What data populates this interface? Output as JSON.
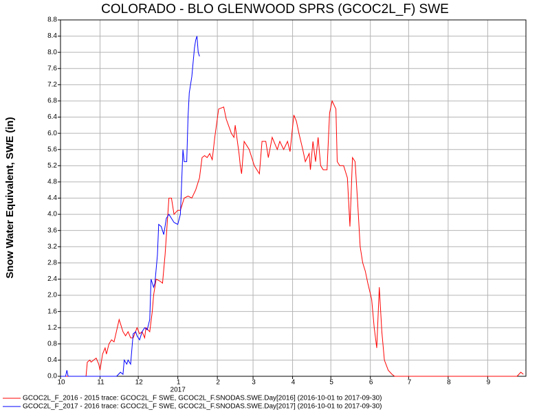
{
  "chart_data": {
    "type": "line",
    "title": "COLORADO - BLO GLENWOOD SPRS (GCOC2L_F) SWE",
    "y_label": "Snow Water Equivalent, SWE (in)",
    "x_annotation": "2017",
    "xlim": [
      0,
      365
    ],
    "xticks": [
      {
        "value": 0,
        "label": "10"
      },
      {
        "value": 31,
        "label": "11"
      },
      {
        "value": 61,
        "label": "12"
      },
      {
        "value": 92,
        "label": "1"
      },
      {
        "value": 123,
        "label": "2"
      },
      {
        "value": 151,
        "label": "3"
      },
      {
        "value": 182,
        "label": "4"
      },
      {
        "value": 212,
        "label": "5"
      },
      {
        "value": 243,
        "label": "6"
      },
      {
        "value": 273,
        "label": "7"
      },
      {
        "value": 304,
        "label": "8"
      },
      {
        "value": 335,
        "label": "9"
      }
    ],
    "ylim": [
      0,
      8.8
    ],
    "yticks": [
      {
        "value": 0,
        "label": "0.0"
      },
      0.4,
      0.8,
      1.2,
      1.6,
      {
        "value": 2,
        "label": "2.0"
      },
      2.4,
      2.8,
      3.2,
      3.6,
      {
        "value": 4,
        "label": "4.0"
      },
      4.4,
      4.8,
      5.2,
      5.6,
      {
        "value": 6,
        "label": "6.0"
      },
      6.4,
      6.8,
      7.2,
      7.6,
      {
        "value": 8,
        "label": "8.0"
      },
      8.4,
      8.8
    ],
    "grid": true,
    "series": [
      {
        "name": "GCOC2L_F_2016 - 2015 trace: GCOC2L_F SWE, GCOC2L_F.SNODAS.SWE.Day[2016] (2016-10-01 to 2017-09-30)",
        "color": "#ff0000",
        "x": [
          0,
          20,
          21,
          23,
          24,
          26,
          28,
          30,
          31,
          33,
          35,
          36,
          38,
          40,
          42,
          46,
          47,
          49,
          51,
          53,
          55,
          57,
          60,
          62,
          64,
          66,
          67,
          70,
          72,
          73,
          75,
          78,
          80,
          82,
          85,
          87,
          89,
          92,
          94,
          97,
          100,
          103,
          106,
          109,
          111,
          113,
          115,
          117,
          119,
          121,
          124,
          128,
          130,
          134,
          136,
          137,
          140,
          141,
          142,
          144,
          146,
          148,
          150,
          152,
          156,
          158,
          161,
          163,
          166,
          168,
          170,
          172,
          175,
          178,
          180,
          183,
          185,
          187,
          190,
          192,
          195,
          196,
          198,
          200,
          202,
          204,
          206,
          209,
          211,
          213,
          216,
          217,
          219,
          222,
          225,
          227,
          229,
          231,
          233,
          235,
          237,
          239,
          241,
          244,
          246,
          248,
          250,
          252,
          254,
          257,
          260,
          262,
          358,
          361,
          363
        ],
        "values": [
          0,
          0,
          0.35,
          0.4,
          0.35,
          0.4,
          0.45,
          0.3,
          0.15,
          0.55,
          0.7,
          0.55,
          0.8,
          0.9,
          0.85,
          1.4,
          1.3,
          1.1,
          1.0,
          1.1,
          0.95,
          0.95,
          1.2,
          1.05,
          1.1,
          0.95,
          1.2,
          1.1,
          1.6,
          2.0,
          2.4,
          2.35,
          2.3,
          3.0,
          4.4,
          4.4,
          4.0,
          4.1,
          4.1,
          4.4,
          4.45,
          4.4,
          4.6,
          4.9,
          5.4,
          5.45,
          5.4,
          5.5,
          5.35,
          5.9,
          6.6,
          6.65,
          6.35,
          6.0,
          5.9,
          6.2,
          5.5,
          5.2,
          5.0,
          5.8,
          5.7,
          5.6,
          5.4,
          5.2,
          5.0,
          5.8,
          5.8,
          5.4,
          5.9,
          5.75,
          5.6,
          5.8,
          5.6,
          5.8,
          5.55,
          6.45,
          6.3,
          6.0,
          5.6,
          5.3,
          5.5,
          5.1,
          5.8,
          5.3,
          5.9,
          5.2,
          5.1,
          5.1,
          6.5,
          6.8,
          6.6,
          5.3,
          5.2,
          5.2,
          4.9,
          3.7,
          5.4,
          5.3,
          4.3,
          3.2,
          2.8,
          2.6,
          2.3,
          1.9,
          1.2,
          0.7,
          2.2,
          1.1,
          0.4,
          0.15,
          0.05,
          0,
          0,
          0.1,
          0.05
        ]
      },
      {
        "name": "GCOC2L_F_2017 - 2016 trace: GCOC2L_F SWE, GCOC2L_F.SNODAS.SWE.Day[2017] (2016-10-01 to 2017-09-30)",
        "color": "#0000ff",
        "x": [
          0,
          4,
          5,
          6,
          44,
          47,
          49,
          50,
          52,
          53,
          55,
          57,
          59,
          60,
          62,
          64,
          66,
          68,
          70,
          71,
          73,
          74,
          76,
          77,
          79,
          81,
          83,
          85,
          87,
          89,
          92,
          94,
          96,
          97,
          99,
          100,
          101,
          103,
          105,
          106,
          107,
          108,
          109
        ],
        "values": [
          0,
          0,
          0.15,
          0,
          0,
          0.1,
          0.05,
          0.4,
          0.3,
          0.4,
          0.3,
          1.05,
          1.1,
          1.0,
          0.9,
          1.1,
          1.2,
          1.15,
          1.4,
          2.4,
          2.2,
          2.3,
          3.0,
          3.75,
          3.7,
          3.5,
          3.9,
          4.0,
          3.9,
          3.8,
          3.75,
          4.0,
          5.6,
          5.3,
          5.3,
          6.4,
          7.0,
          7.4,
          8.1,
          8.3,
          8.4,
          8.0,
          7.9
        ]
      }
    ]
  }
}
